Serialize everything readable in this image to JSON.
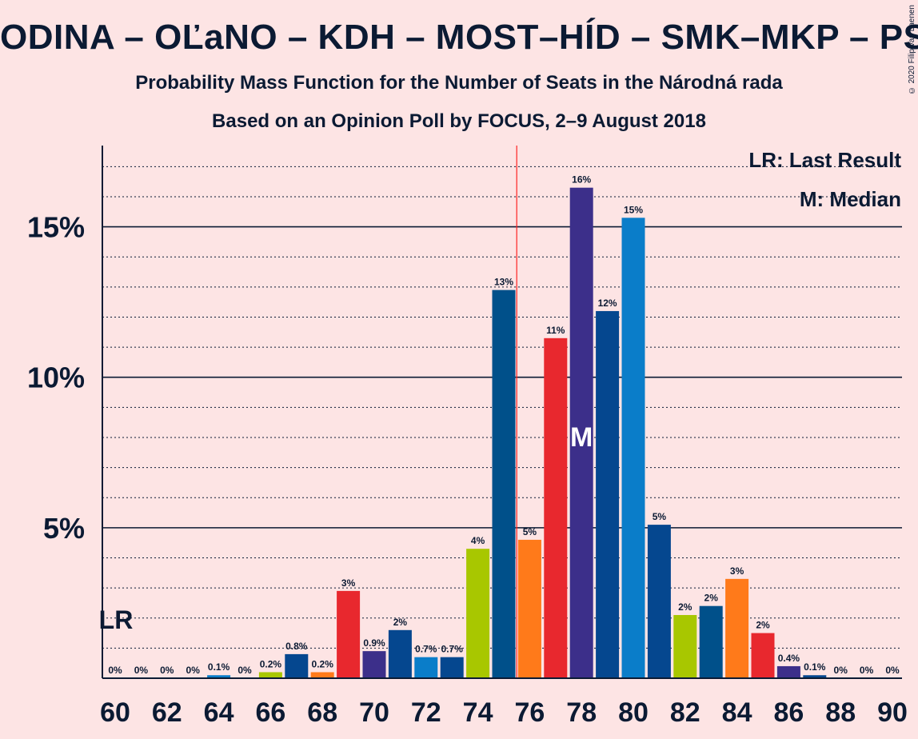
{
  "title": "ODINA – OĽaNO – KDH – MOST–HÍD – SMK–MKP – PS",
  "subtitle": "Probability Mass Function for the Number of Seats in the Národná rada",
  "subtitle2": "Based on an Opinion Poll by FOCUS, 2–9 August 2018",
  "copyright": "© 2020 Filip van Laenen",
  "legend": {
    "last_result": "LR: Last Result",
    "median": "M: Median"
  },
  "chart_data": {
    "type": "bar",
    "x": [
      60,
      61,
      62,
      63,
      64,
      65,
      66,
      67,
      68,
      69,
      70,
      71,
      72,
      73,
      74,
      75,
      76,
      77,
      78,
      79,
      80,
      81,
      82,
      83,
      84,
      85,
      86,
      87,
      88,
      89,
      90
    ],
    "values": [
      0,
      0,
      0,
      0,
      0.1,
      0,
      0.2,
      0.8,
      0.2,
      2.9,
      0.9,
      1.6,
      0.7,
      0.7,
      4.3,
      12.9,
      4.6,
      11.3,
      16.3,
      12.2,
      15.3,
      5.1,
      2.1,
      2.4,
      3.3,
      1.5,
      0.4,
      0.1,
      0,
      0,
      0
    ],
    "labels": [
      "0%",
      "0%",
      "0%",
      "0%",
      "0.1%",
      "0%",
      "0.2%",
      "0.8%",
      "0.2%",
      "3%",
      "0.9%",
      "2%",
      "0.7%",
      "0.7%",
      "4%",
      "13%",
      "5%",
      "11%",
      "16%",
      "12%",
      "15%",
      "5%",
      "2%",
      "2%",
      "3%",
      "2%",
      "0.4%",
      "0.1%",
      "0%",
      "0%",
      "0%"
    ],
    "colors": [
      "#1f4e8c",
      "#1f4e8c",
      "#1f4e8c",
      "#1f4e8c",
      "#0a7dc9",
      "#1f4e8c",
      "#a8c700",
      "#05478f",
      "#ff7a1a",
      "#e8282e",
      "#3c2f8a",
      "#05478f",
      "#0a7dc9",
      "#05478f",
      "#a8c700",
      "#00508a",
      "#ff7a1a",
      "#e8282e",
      "#3c2f8a",
      "#05478f",
      "#0a7dc9",
      "#05478f",
      "#a8c700",
      "#00508a",
      "#ff7a1a",
      "#e8282e",
      "#3c2f8a",
      "#05478f",
      "#0a7dc9",
      "#05478f",
      "#a8c700"
    ],
    "x_tick_labels": [
      "60",
      "62",
      "64",
      "66",
      "68",
      "70",
      "72",
      "74",
      "76",
      "78",
      "80",
      "82",
      "84",
      "86",
      "88",
      "90"
    ],
    "y_tick_labels": [
      "5%",
      "10%",
      "15%"
    ],
    "y_ticks": [
      5,
      10,
      15
    ],
    "ylim": [
      0,
      17.7
    ],
    "last_result_seat": 60,
    "last_result_label": "LR",
    "majority_line_x": 75.5,
    "median_seat": 78,
    "median_label": "M",
    "minor_grid_step": 1,
    "grid": true
  }
}
